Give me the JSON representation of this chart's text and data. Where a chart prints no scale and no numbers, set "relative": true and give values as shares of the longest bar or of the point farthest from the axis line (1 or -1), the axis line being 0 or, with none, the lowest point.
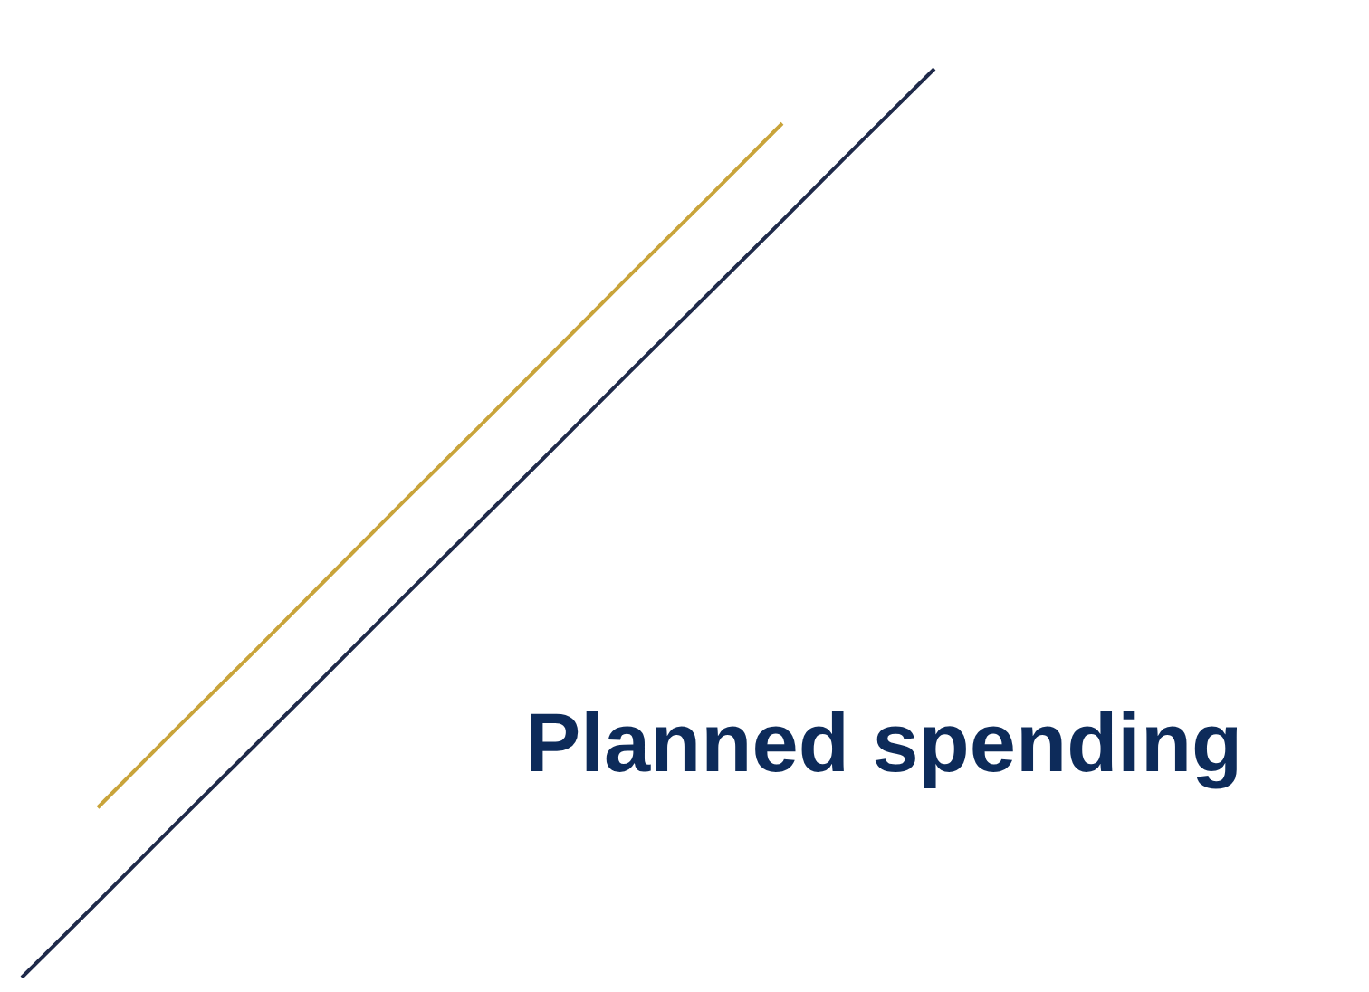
{
  "chart_data": {
    "type": "line",
    "relative": true,
    "categories": [
      null,
      null,
      null,
      null,
      null,
      null,
      null,
      null,
      null,
      null,
      null,
      null,
      null
    ],
    "marker": "none",
    "line_style": "solid",
    "series": [
      {
        "name": "Planned spending",
        "color": "#1f2a4a",
        "values": [
          0,
          0.083,
          0.167,
          0.25,
          0.333,
          0.417,
          0.5,
          0.583,
          0.667,
          0.75,
          0.833,
          0.917,
          1
        ]
      },
      {
        "color": "#c9a43a",
        "values": [
          null,
          0.187,
          0.271,
          0.354,
          0.438,
          0.522,
          0.605,
          0.689,
          0.773,
          0.856,
          0.94,
          null,
          null
        ]
      }
    ]
  }
}
